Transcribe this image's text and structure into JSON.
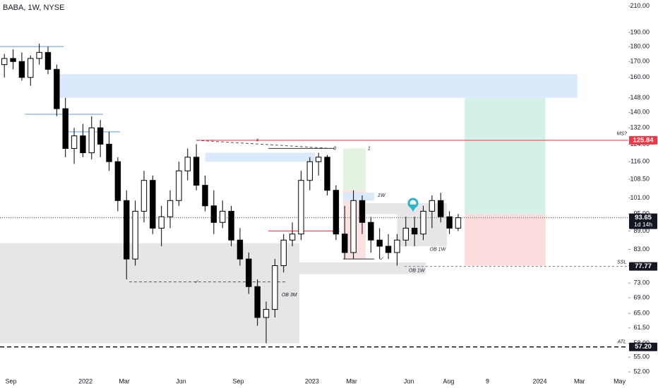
{
  "chart_data": {
    "type": "candlestick",
    "title": "BABA, 1W, NYSE",
    "log_scale": true,
    "up_color": "#ffffff",
    "down_color": "#000000",
    "x": [
      0,
      2,
      4,
      6,
      8,
      10,
      12,
      14,
      16,
      18,
      20,
      22,
      24,
      26,
      28,
      30,
      32,
      34,
      36,
      38,
      40,
      42,
      44,
      46,
      48,
      50,
      52,
      54,
      56,
      58,
      60,
      62,
      64,
      66,
      68,
      70,
      72,
      74,
      76,
      78,
      80,
      82,
      84,
      86,
      88,
      90,
      92,
      94,
      96,
      98,
      100,
      102,
      104
    ],
    "open": [
      168,
      172,
      170,
      160,
      172,
      176,
      165,
      142,
      122,
      128,
      120,
      132,
      124,
      116,
      100,
      80,
      96,
      108,
      90,
      94,
      100,
      112,
      118,
      106,
      98,
      92,
      96,
      86,
      80,
      72,
      64,
      66,
      78,
      86,
      88,
      108,
      116,
      118,
      104,
      88,
      82,
      100,
      92,
      86,
      84,
      82,
      86,
      90,
      88,
      96,
      100,
      94,
      90
    ],
    "high": [
      175,
      178,
      176,
      174,
      182,
      180,
      168,
      148,
      132,
      134,
      138,
      136,
      130,
      118,
      104,
      100,
      112,
      110,
      98,
      104,
      116,
      122,
      124,
      110,
      104,
      100,
      98,
      90,
      82,
      74,
      68,
      80,
      88,
      92,
      112,
      118,
      120,
      119,
      106,
      98,
      104,
      102,
      94,
      90,
      88,
      88,
      94,
      94,
      98,
      102,
      103,
      96,
      95
    ],
    "low": [
      160,
      165,
      158,
      155,
      168,
      162,
      138,
      118,
      115,
      118,
      117,
      118,
      112,
      96,
      74,
      78,
      92,
      88,
      84,
      90,
      98,
      108,
      104,
      96,
      88,
      90,
      84,
      78,
      70,
      62,
      58,
      64,
      76,
      84,
      86,
      104,
      110,
      102,
      86,
      80,
      80,
      88,
      82,
      80,
      80,
      78,
      84,
      84,
      86,
      90,
      92,
      88,
      89
    ],
    "close": [
      172,
      170,
      160,
      172,
      176,
      165,
      142,
      122,
      128,
      120,
      132,
      124,
      116,
      100,
      80,
      96,
      108,
      90,
      94,
      100,
      112,
      118,
      106,
      98,
      92,
      96,
      86,
      80,
      72,
      64,
      66,
      78,
      86,
      88,
      108,
      116,
      118,
      104,
      88,
      82,
      100,
      92,
      86,
      84,
      82,
      86,
      90,
      88,
      96,
      100,
      94,
      90,
      93.65
    ],
    "xlim": [
      -1,
      143
    ],
    "ylim": [
      50.5,
      215
    ],
    "xticks": [
      {
        "value": 1.5,
        "label": "Sep"
      },
      {
        "value": 18.6,
        "label": "2022"
      },
      {
        "value": 27.5,
        "label": "Mar"
      },
      {
        "value": 40.5,
        "label": "Jun"
      },
      {
        "value": 53.6,
        "label": "Sep"
      },
      {
        "value": 70.5,
        "label": "2023"
      },
      {
        "value": 79.6,
        "label": "Mar"
      },
      {
        "value": 92.7,
        "label": "Jun"
      },
      {
        "value": 101.8,
        "label": "Aug"
      },
      {
        "value": 110.7,
        "label": "9"
      },
      {
        "value": 122.7,
        "label": "2024"
      },
      {
        "value": 131.8,
        "label": "Mar"
      },
      {
        "value": 141,
        "label": "May"
      }
    ],
    "yticks": [
      {
        "value": 210,
        "label": "210.00"
      },
      {
        "value": 190,
        "label": "190.00"
      },
      {
        "value": 180,
        "label": "180.00"
      },
      {
        "value": 170,
        "label": "170.00"
      },
      {
        "value": 160,
        "label": "160.00"
      },
      {
        "value": 148,
        "label": "148.00"
      },
      {
        "value": 140,
        "label": "140.00"
      },
      {
        "value": 132,
        "label": "132.00"
      },
      {
        "value": 124,
        "label": "124.00"
      },
      {
        "value": 116,
        "label": "116.00"
      },
      {
        "value": 108.5,
        "label": "108.50"
      },
      {
        "value": 101,
        "label": "101.00"
      },
      {
        "value": 95,
        "label": "95.00"
      },
      {
        "value": 89,
        "label": "89.00"
      },
      {
        "value": 83,
        "label": "83.00"
      },
      {
        "value": 78,
        "label": "78.00"
      },
      {
        "value": 73,
        "label": "73.00"
      },
      {
        "value": 69,
        "label": "69.00"
      },
      {
        "value": 65,
        "label": "65.00"
      },
      {
        "value": 61.5,
        "label": "61.50"
      },
      {
        "value": 58,
        "label": "58.00"
      },
      {
        "value": 55,
        "label": "55.00"
      },
      {
        "value": 52,
        "label": "52.00"
      }
    ],
    "zones": [
      {
        "x": [
          -1,
          67.6
        ],
        "y": [
          58,
          85
        ],
        "color": "#e6e6e8"
      },
      {
        "x": [
          11.9,
          131.3
        ],
        "y": [
          148,
          162
        ],
        "color": "#dbeafb"
      },
      {
        "x": [
          105.5,
          124
        ],
        "y": [
          95,
          148
        ],
        "color": "#d5efe9"
      },
      {
        "x": [
          105.5,
          124
        ],
        "y": [
          78,
          95
        ],
        "color": "#fbdcdc"
      },
      {
        "x": [
          66.1,
          96.6
        ],
        "y": [
          75.5,
          79
        ],
        "color": "#e6e6e8"
      },
      {
        "x": [
          46,
          71.2
        ],
        "y": [
          116,
          120
        ],
        "color": "#dbeafb"
      },
      {
        "x": [
          77.6,
          82.8
        ],
        "y": [
          104,
          122
        ],
        "color": "#e3f3e2"
      },
      {
        "x": [
          77.6,
          82.8
        ],
        "y": [
          80,
          104
        ],
        "color": "#fbe2e2"
      },
      {
        "x": [
          82.6,
          101.4
        ],
        "y": [
          95,
          99
        ],
        "color": "#e6e6e8"
      },
      {
        "x": [
          77.6,
          84.8
        ],
        "y": [
          100,
          103
        ],
        "color": "#dbeafb"
      },
      {
        "x": [
          90,
          101.4
        ],
        "y": [
          84,
          95
        ],
        "color": "#e6e6e8"
      }
    ],
    "lines": [
      {
        "x": [
          44,
          143
        ],
        "y": [
          125.84,
          125.84
        ],
        "color": "#f23645",
        "dash": "none"
      },
      {
        "x": [
          -1,
          143
        ],
        "y": [
          57.2,
          57.2
        ],
        "color": "#131722",
        "dash": "6,4"
      },
      {
        "x": [
          91.7,
          143
        ],
        "y": [
          77.77,
          77.77
        ],
        "color": "#787b86",
        "dash": "3,3"
      },
      {
        "x": [
          28.6,
          64.5
        ],
        "y": [
          73.3,
          73.3
        ],
        "color": "#555555",
        "dash": "4,3"
      },
      {
        "x": [
          -1,
          143
        ],
        "y": [
          93.65,
          93.65
        ],
        "color": "#555555",
        "dash": "1,2"
      },
      {
        "x": [
          -1,
          13.6
        ],
        "y": [
          180,
          180
        ],
        "color": "#5b9bd5",
        "dash": "none"
      },
      {
        "x": [
          4.7,
          22.6
        ],
        "y": [
          139,
          139
        ],
        "color": "#5b9bd5",
        "dash": "none"
      },
      {
        "x": [
          14.4,
          26.5
        ],
        "y": [
          130,
          130
        ],
        "color": "#5b9bd5",
        "dash": "none"
      },
      {
        "x": [
          44,
          75
        ],
        "y": [
          125.84,
          122
        ],
        "color": "#555555",
        "dash": "4,3"
      },
      {
        "x": [
          60.5,
          75.7
        ],
        "y": [
          122,
          122
        ],
        "color": "#333333",
        "dash": "none"
      },
      {
        "x": [
          60.5,
          76
        ],
        "y": [
          89,
          89
        ],
        "color": "#f23645",
        "dash": "none"
      },
      {
        "x": [
          77.6,
          84.8
        ],
        "y": [
          80,
          80
        ],
        "color": "#333333",
        "dash": "none"
      }
    ],
    "annotations": [
      {
        "text": "x",
        "x": 58,
        "y": 126
      },
      {
        "text": "✓",
        "x": 44,
        "y": 73.3
      },
      {
        "text": "✓",
        "x": 86.4,
        "y": 80
      },
      {
        "text": "OB 3M",
        "x": 65.3,
        "y": 69.7
      },
      {
        "text": "OB 1W",
        "x": 99.3,
        "y": 83
      },
      {
        "text": "OB 1W",
        "x": 94.5,
        "y": 76.5
      },
      {
        "text": "1W",
        "x": 86.4,
        "y": 102
      },
      {
        "text": "0.5",
        "x": 76,
        "y": 89
      },
      {
        "text": "0",
        "x": 75.7,
        "y": 122
      },
      {
        "text": "1",
        "x": 83.6,
        "y": 122
      },
      {
        "text": "MS?",
        "x": 141.5,
        "y": 129
      },
      {
        "text": "SSL",
        "x": 141.5,
        "y": 79
      },
      {
        "text": "ATL",
        "x": 141.5,
        "y": 58.3
      }
    ],
    "price_labels": [
      {
        "value": 125.84,
        "label": "125.84",
        "color": "#f23645"
      },
      {
        "value": 93.65,
        "label": "93.65",
        "color": "#131722",
        "sub": "1d 14h"
      },
      {
        "value": 77.77,
        "label": "77.77",
        "color": "#131722"
      },
      {
        "value": 57.2,
        "label": "57.20",
        "color": "#131722"
      }
    ]
  }
}
